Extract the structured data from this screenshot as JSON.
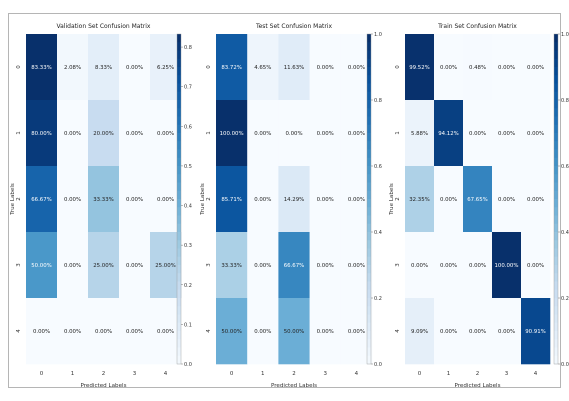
{
  "chart_data": [
    {
      "type": "heatmap",
      "title": "Validation Set Confusion Matrix",
      "xlabel": "Predicted Labels",
      "ylabel": "True Labels",
      "x_categories": [
        "0",
        "1",
        "2",
        "3",
        "4"
      ],
      "y_categories": [
        "0",
        "1",
        "2",
        "3",
        "4"
      ],
      "values": [
        [
          0.8333,
          0.0208,
          0.0833,
          0.0,
          0.0625
        ],
        [
          0.8,
          0.0,
          0.2,
          0.0,
          0.0
        ],
        [
          0.6667,
          0.0,
          0.3333,
          0.0,
          0.0
        ],
        [
          0.5,
          0.0,
          0.25,
          0.0,
          0.25
        ],
        [
          0.0,
          0.0,
          0.0,
          0.0,
          0.0
        ]
      ],
      "labels": [
        [
          "83.33%",
          "2.08%",
          "8.33%",
          "0.00%",
          "6.25%"
        ],
        [
          "80.00%",
          "0.00%",
          "20.00%",
          "0.00%",
          "0.00%"
        ],
        [
          "66.67%",
          "0.00%",
          "33.33%",
          "0.00%",
          "0.00%"
        ],
        [
          "50.00%",
          "0.00%",
          "25.00%",
          "0.00%",
          "25.00%"
        ],
        [
          "0.00%",
          "0.00%",
          "0.00%",
          "0.00%",
          "0.00%"
        ]
      ],
      "colorbar": {
        "range": [
          0.0,
          0.833
        ],
        "ticks": [
          "0.0",
          "0.1",
          "0.2",
          "0.3",
          "0.4",
          "0.5",
          "0.6",
          "0.7",
          "0.8"
        ]
      },
      "colormap": "Blues"
    },
    {
      "type": "heatmap",
      "title": "Test Set Confusion Matrix",
      "xlabel": "Predicted Labels",
      "ylabel": "True Labels",
      "x_categories": [
        "0",
        "1",
        "2",
        "3",
        "4"
      ],
      "y_categories": [
        "0",
        "1",
        "2",
        "3",
        "4"
      ],
      "values": [
        [
          0.8372,
          0.0465,
          0.1163,
          0.0,
          0.0
        ],
        [
          1.0,
          0.0,
          0.0,
          0.0,
          0.0
        ],
        [
          0.8571,
          0.0,
          0.1429,
          0.0,
          0.0
        ],
        [
          0.3333,
          0.0,
          0.6667,
          0.0,
          0.0
        ],
        [
          0.5,
          0.0,
          0.5,
          0.0,
          0.0
        ]
      ],
      "labels": [
        [
          "83.72%",
          "4.65%",
          "11.63%",
          "0.00%",
          "0.00%"
        ],
        [
          "100.00%",
          "0.00%",
          "0.00%",
          "0.00%",
          "0.00%"
        ],
        [
          "85.71%",
          "0.00%",
          "14.29%",
          "0.00%",
          "0.00%"
        ],
        [
          "33.33%",
          "0.00%",
          "66.67%",
          "0.00%",
          "0.00%"
        ],
        [
          "50.00%",
          "0.00%",
          "50.00%",
          "0.00%",
          "0.00%"
        ]
      ],
      "colorbar": {
        "range": [
          0.0,
          1.0
        ],
        "ticks": [
          "0.0",
          "0.2",
          "0.4",
          "0.6",
          "0.8",
          "1.0"
        ]
      },
      "colormap": "Blues"
    },
    {
      "type": "heatmap",
      "title": "Train Set Confusion Matrix",
      "xlabel": "Predicted Labels",
      "ylabel": "True Labels",
      "x_categories": [
        "0",
        "1",
        "2",
        "3",
        "4"
      ],
      "y_categories": [
        "0",
        "1",
        "2",
        "3",
        "4"
      ],
      "values": [
        [
          0.9952,
          0.0,
          0.0048,
          0.0,
          0.0
        ],
        [
          0.0588,
          0.9412,
          0.0,
          0.0,
          0.0
        ],
        [
          0.3235,
          0.0,
          0.6765,
          0.0,
          0.0
        ],
        [
          0.0,
          0.0,
          0.0,
          1.0,
          0.0
        ],
        [
          0.0909,
          0.0,
          0.0,
          0.0,
          0.9091
        ]
      ],
      "labels": [
        [
          "99.52%",
          "0.00%",
          "0.48%",
          "0.00%",
          "0.00%"
        ],
        [
          "5.88%",
          "94.12%",
          "0.00%",
          "0.00%",
          "0.00%"
        ],
        [
          "32.35%",
          "0.00%",
          "67.65%",
          "0.00%",
          "0.00%"
        ],
        [
          "0.00%",
          "0.00%",
          "0.00%",
          "100.00%",
          "0.00%"
        ],
        [
          "9.09%",
          "0.00%",
          "0.00%",
          "0.00%",
          "90.91%"
        ]
      ],
      "colorbar": {
        "range": [
          0.0,
          1.0
        ],
        "ticks": [
          "0.0",
          "0.2",
          "0.4",
          "0.6",
          "0.8",
          "1.0"
        ]
      },
      "colormap": "Blues"
    }
  ]
}
